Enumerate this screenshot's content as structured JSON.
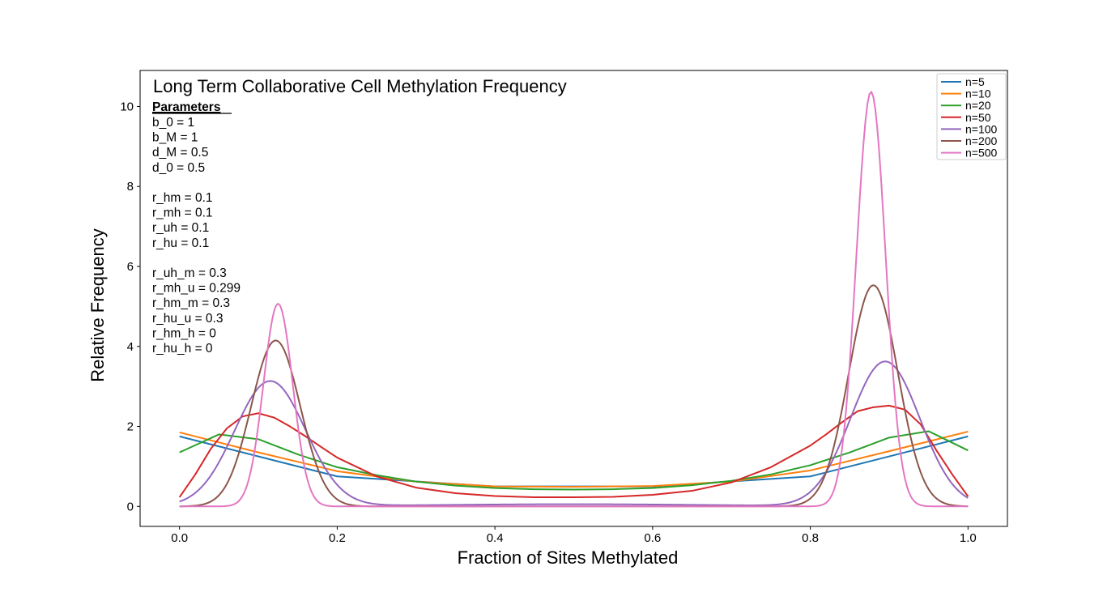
{
  "chart_data": {
    "type": "line",
    "title": "Long Term Collaborative Cell Methylation Frequency",
    "xlabel": "Fraction of Sites Methylated",
    "ylabel": "Relative Frequency",
    "xlim": [
      -0.05,
      1.05
    ],
    "ylim": [
      -0.5,
      10.9
    ],
    "x_ticks": [
      0.0,
      0.2,
      0.4,
      0.6,
      0.8,
      1.0
    ],
    "x_tick_labels": [
      "0.0",
      "0.2",
      "0.4",
      "0.6",
      "0.8",
      "1.0"
    ],
    "y_ticks": [
      0,
      2,
      4,
      6,
      8,
      10
    ],
    "y_tick_labels": [
      "0",
      "2",
      "4",
      "6",
      "8",
      "10"
    ],
    "grid": false,
    "legend_position": "top-right",
    "parameters_heading": "Parameters",
    "parameters": [
      "b_0 = 1",
      "b_M = 1",
      "d_M = 0.5",
      "d_0 = 0.5",
      "",
      "r_hm = 0.1",
      "r_mh = 0.1",
      "r_uh = 0.1",
      "r_hu = 0.1",
      "",
      "r_uh_m = 0.3",
      "r_mh_u = 0.299",
      "r_hm_m = 0.3",
      "r_hu_u = 0.3",
      "r_hm_h = 0",
      "r_hu_h = 0"
    ],
    "series": [
      {
        "name": "n=5",
        "color": "#1f77b4",
        "x": [
          0.0,
          0.2,
          0.4,
          0.6,
          0.8,
          1.0
        ],
        "y": [
          1.75,
          0.75,
          0.5,
          0.5,
          0.75,
          1.75
        ]
      },
      {
        "name": "n=10",
        "color": "#ff7f0e",
        "x": [
          0.0,
          0.1,
          0.2,
          0.3,
          0.4,
          0.5,
          0.6,
          0.7,
          0.8,
          0.9,
          1.0
        ],
        "y": [
          1.85,
          1.35,
          0.88,
          0.62,
          0.5,
          0.49,
          0.51,
          0.62,
          0.9,
          1.38,
          1.87
        ]
      },
      {
        "name": "n=20",
        "color": "#2ca02c",
        "x": [
          0.0,
          0.05,
          0.1,
          0.15,
          0.2,
          0.25,
          0.3,
          0.35,
          0.4,
          0.45,
          0.5,
          0.55,
          0.6,
          0.65,
          0.7,
          0.75,
          0.8,
          0.85,
          0.9,
          0.95,
          1.0
        ],
        "y": [
          1.35,
          1.8,
          1.68,
          1.3,
          0.98,
          0.78,
          0.62,
          0.52,
          0.46,
          0.43,
          0.42,
          0.43,
          0.46,
          0.53,
          0.64,
          0.8,
          1.03,
          1.35,
          1.72,
          1.88,
          1.4
        ]
      },
      {
        "name": "n=50",
        "color": "#d62728",
        "x": [
          0.0,
          0.02,
          0.04,
          0.06,
          0.08,
          0.1,
          0.12,
          0.14,
          0.16,
          0.18,
          0.2,
          0.25,
          0.3,
          0.35,
          0.4,
          0.45,
          0.5,
          0.55,
          0.6,
          0.65,
          0.7,
          0.75,
          0.8,
          0.82,
          0.84,
          0.86,
          0.88,
          0.9,
          0.92,
          0.94,
          0.96,
          0.98,
          1.0
        ],
        "y": [
          0.23,
          0.8,
          1.45,
          1.95,
          2.25,
          2.33,
          2.22,
          2.0,
          1.75,
          1.48,
          1.22,
          0.75,
          0.47,
          0.33,
          0.26,
          0.23,
          0.23,
          0.24,
          0.29,
          0.39,
          0.6,
          0.98,
          1.52,
          1.8,
          2.1,
          2.38,
          2.48,
          2.52,
          2.42,
          2.05,
          1.4,
          0.8,
          0.25
        ]
      },
      {
        "name": "n=100",
        "color": "#9467bd",
        "gauss": [
          {
            "mu": 0.115,
            "sigma": 0.045,
            "amp": 3.13,
            "clip": [
              0.0,
              0.5
            ]
          },
          {
            "mu": 0.895,
            "sigma": 0.044,
            "amp": 3.62,
            "clip": [
              0.5,
              1.0
            ]
          }
        ],
        "baseline": 0.055,
        "baseline_width": 0.18
      },
      {
        "name": "n=200",
        "color": "#8c564b",
        "gauss": [
          {
            "mu": 0.122,
            "sigma": 0.031,
            "amp": 4.15,
            "clip": [
              0.0,
              0.5
            ]
          },
          {
            "mu": 0.88,
            "sigma": 0.031,
            "amp": 5.53,
            "clip": [
              0.5,
              1.0
            ]
          }
        ],
        "baseline": 0.0,
        "baseline_width": 0.0
      },
      {
        "name": "n=500",
        "color": "#e377c2",
        "gauss": [
          {
            "mu": 0.125,
            "sigma": 0.0185,
            "amp": 5.07,
            "clip": [
              0.0,
              0.5
            ]
          },
          {
            "mu": 0.877,
            "sigma": 0.0185,
            "amp": 10.37,
            "clip": [
              0.5,
              1.0
            ]
          }
        ],
        "baseline": 0.0,
        "baseline_width": 0.0
      }
    ]
  }
}
